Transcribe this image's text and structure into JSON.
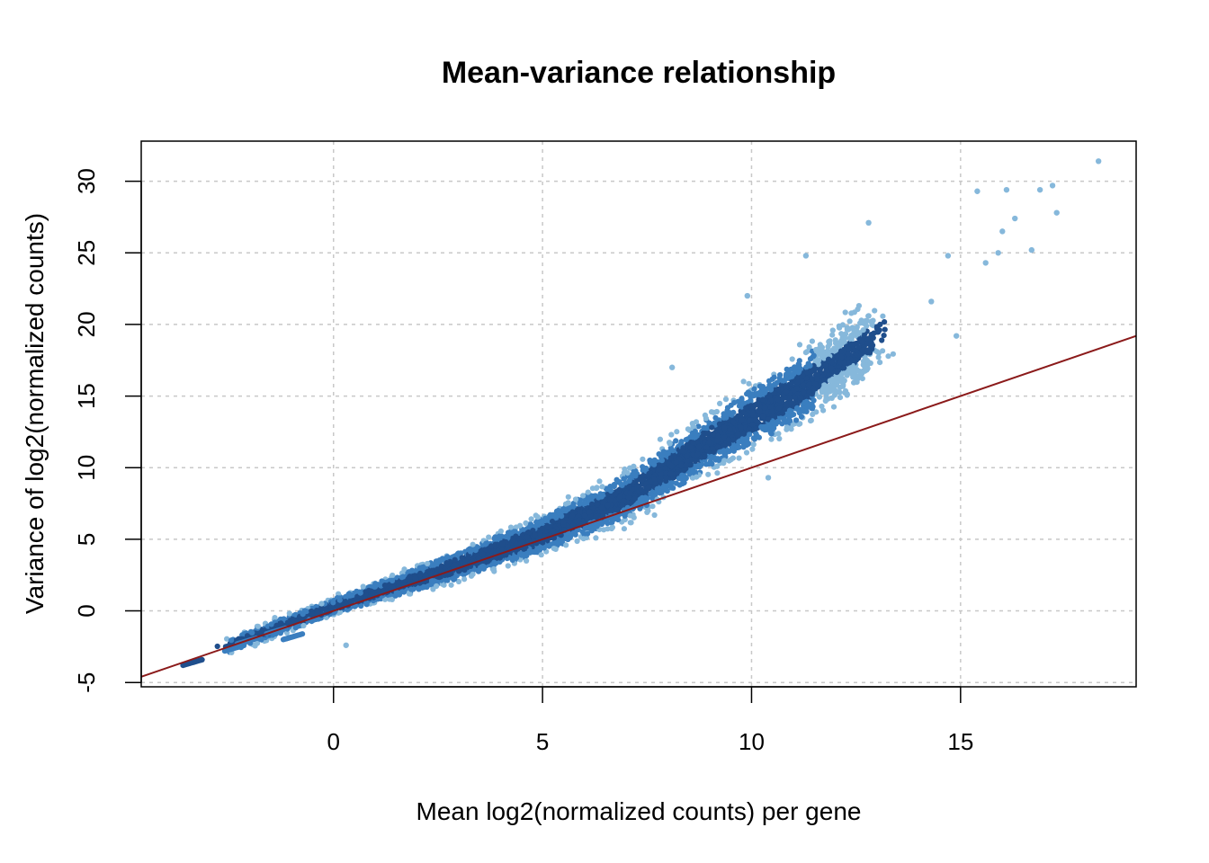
{
  "chart_data": {
    "type": "scatter",
    "title": "Mean-variance relationship",
    "xlabel": "Mean log2(normalized counts) per gene",
    "ylabel": "Variance of log2(normalized counts)",
    "xlim": [
      -4.6,
      19.2
    ],
    "ylim": [
      -5.3,
      32.8
    ],
    "x_ticks": [
      0,
      5,
      10,
      15
    ],
    "y_ticks": [
      -5,
      0,
      5,
      10,
      15,
      20,
      25,
      30
    ],
    "grid": true,
    "point_color_scale": "density (dark blue = dense, light blue = sparse)",
    "colors": {
      "dense": "#1f4e8c",
      "mid": "#3a7ebf",
      "sparse": "#86b8db",
      "line": "#8b1a1a"
    },
    "reference_line": {
      "slope": 1,
      "intercept": 0,
      "label": ""
    },
    "trend_points": [
      {
        "x": -3.6,
        "y": -3.6
      },
      {
        "x": 0,
        "y": 0.3
      },
      {
        "x": 3,
        "y": 3.2
      },
      {
        "x": 5,
        "y": 5.3
      },
      {
        "x": 7,
        "y": 8.0
      },
      {
        "x": 9,
        "y": 11.8
      },
      {
        "x": 11,
        "y": 15.2
      },
      {
        "x": 13,
        "y": 19.2
      },
      {
        "x": 15,
        "y": 23.0
      }
    ],
    "outliers": [
      {
        "x": 18.3,
        "y": 31.4
      },
      {
        "x": 17.2,
        "y": 29.7
      },
      {
        "x": 16.9,
        "y": 29.4
      },
      {
        "x": 16.1,
        "y": 29.4
      },
      {
        "x": 15.4,
        "y": 29.3
      },
      {
        "x": 17.3,
        "y": 27.8
      },
      {
        "x": 12.8,
        "y": 27.1
      },
      {
        "x": 16.3,
        "y": 27.4
      },
      {
        "x": 16.0,
        "y": 26.5
      },
      {
        "x": 16.7,
        "y": 25.2
      },
      {
        "x": 11.3,
        "y": 24.8
      },
      {
        "x": 15.6,
        "y": 24.3
      },
      {
        "x": 9.9,
        "y": 22.0
      },
      {
        "x": 8.1,
        "y": 17.0
      },
      {
        "x": 10.4,
        "y": 9.3
      },
      {
        "x": 0.3,
        "y": -2.4
      },
      {
        "x": 15.9,
        "y": 25.0
      },
      {
        "x": 14.7,
        "y": 24.8
      },
      {
        "x": 14.3,
        "y": 21.6
      },
      {
        "x": 14.9,
        "y": 19.2
      }
    ]
  }
}
